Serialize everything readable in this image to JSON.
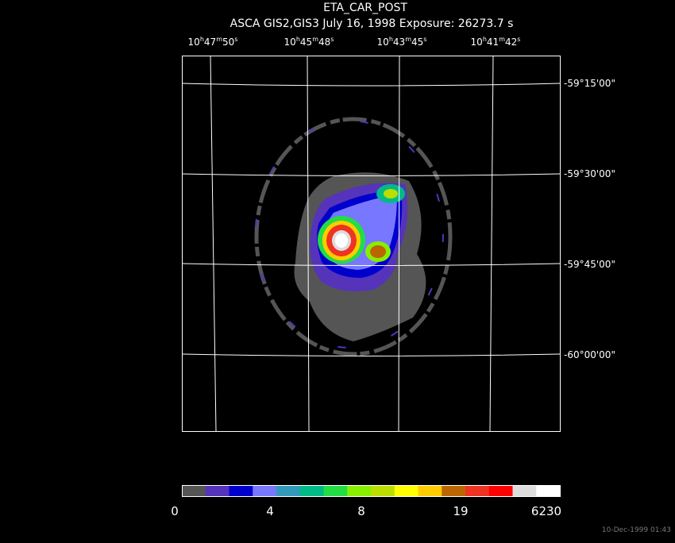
{
  "title": "ETA_CAR_POST",
  "subtitle": "ASCA GIS2,GIS3 July 16, 1998 Exposure: 26273.7 s",
  "ra_labels": [
    [
      "10",
      "h",
      "47",
      "m",
      "50",
      "s"
    ],
    [
      "10",
      "h",
      "45",
      "m",
      "48",
      "s"
    ],
    [
      "10",
      "h",
      "43",
      "m",
      "45",
      "s"
    ],
    [
      "10",
      "h",
      "41",
      "m",
      "42",
      "s"
    ]
  ],
  "dec_labels": [
    "-59°15'00\"",
    "-59°30'00\"",
    "-59°45'00\"",
    "-60°00'00\""
  ],
  "colorbar_labels": [
    "0",
    "4",
    "8",
    "19",
    "6230"
  ],
  "timestamp": "10-Dec-1999 01:43"
}
